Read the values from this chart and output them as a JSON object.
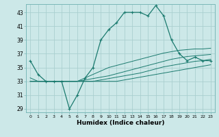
{
  "xlabel": "Humidex (Indice chaleur)",
  "bg_color": "#cce8e8",
  "grid_color": "#aacfcf",
  "line_color": "#1a7a6e",
  "xlim": [
    -0.5,
    23.5
  ],
  "ylim": [
    28.5,
    44.2
  ],
  "xticks": [
    0,
    1,
    2,
    3,
    4,
    5,
    6,
    7,
    8,
    9,
    10,
    11,
    12,
    13,
    14,
    15,
    16,
    17,
    18,
    19,
    20,
    21,
    22,
    23
  ],
  "xtick_labels": [
    "0",
    "1",
    "2",
    "3",
    "4",
    "5",
    "6",
    "7",
    "8",
    "9",
    "10",
    "11",
    "12",
    "13",
    "14",
    "15",
    "16",
    "17",
    "18",
    "19",
    "20",
    "21",
    "22",
    "23"
  ],
  "yticks": [
    29,
    31,
    33,
    35,
    37,
    39,
    41,
    43
  ],
  "main_y": [
    36.0,
    34.0,
    33.0,
    33.0,
    33.0,
    29.0,
    31.0,
    33.5,
    35.0,
    39.0,
    40.5,
    41.5,
    43.0,
    43.0,
    43.0,
    42.5,
    44.0,
    42.5,
    39.0,
    37.0,
    36.0,
    36.5,
    36.0,
    36.0
  ],
  "line2_y": [
    33.0,
    33.0,
    33.0,
    33.0,
    33.0,
    33.0,
    33.0,
    33.0,
    33.0,
    33.0,
    33.0,
    33.0,
    33.2,
    33.4,
    33.6,
    33.8,
    34.0,
    34.2,
    34.4,
    34.6,
    34.8,
    35.0,
    35.2,
    35.4
  ],
  "line3_y": [
    33.0,
    33.0,
    33.0,
    33.0,
    33.0,
    33.0,
    33.0,
    33.0,
    33.0,
    33.2,
    33.4,
    33.6,
    33.8,
    34.0,
    34.2,
    34.5,
    34.8,
    35.1,
    35.3,
    35.5,
    35.7,
    35.9,
    36.0,
    36.2
  ],
  "line4_y": [
    33.0,
    33.0,
    33.0,
    33.0,
    33.0,
    33.0,
    33.0,
    33.2,
    33.4,
    33.6,
    33.8,
    34.1,
    34.4,
    34.7,
    35.0,
    35.3,
    35.6,
    35.9,
    36.2,
    36.4,
    36.6,
    36.7,
    36.8,
    36.9
  ],
  "line5_y": [
    33.5,
    33.0,
    33.0,
    33.0,
    33.0,
    33.0,
    33.0,
    33.5,
    34.0,
    34.5,
    35.0,
    35.3,
    35.6,
    35.9,
    36.2,
    36.5,
    36.8,
    37.1,
    37.3,
    37.5,
    37.6,
    37.7,
    37.7,
    37.8
  ]
}
